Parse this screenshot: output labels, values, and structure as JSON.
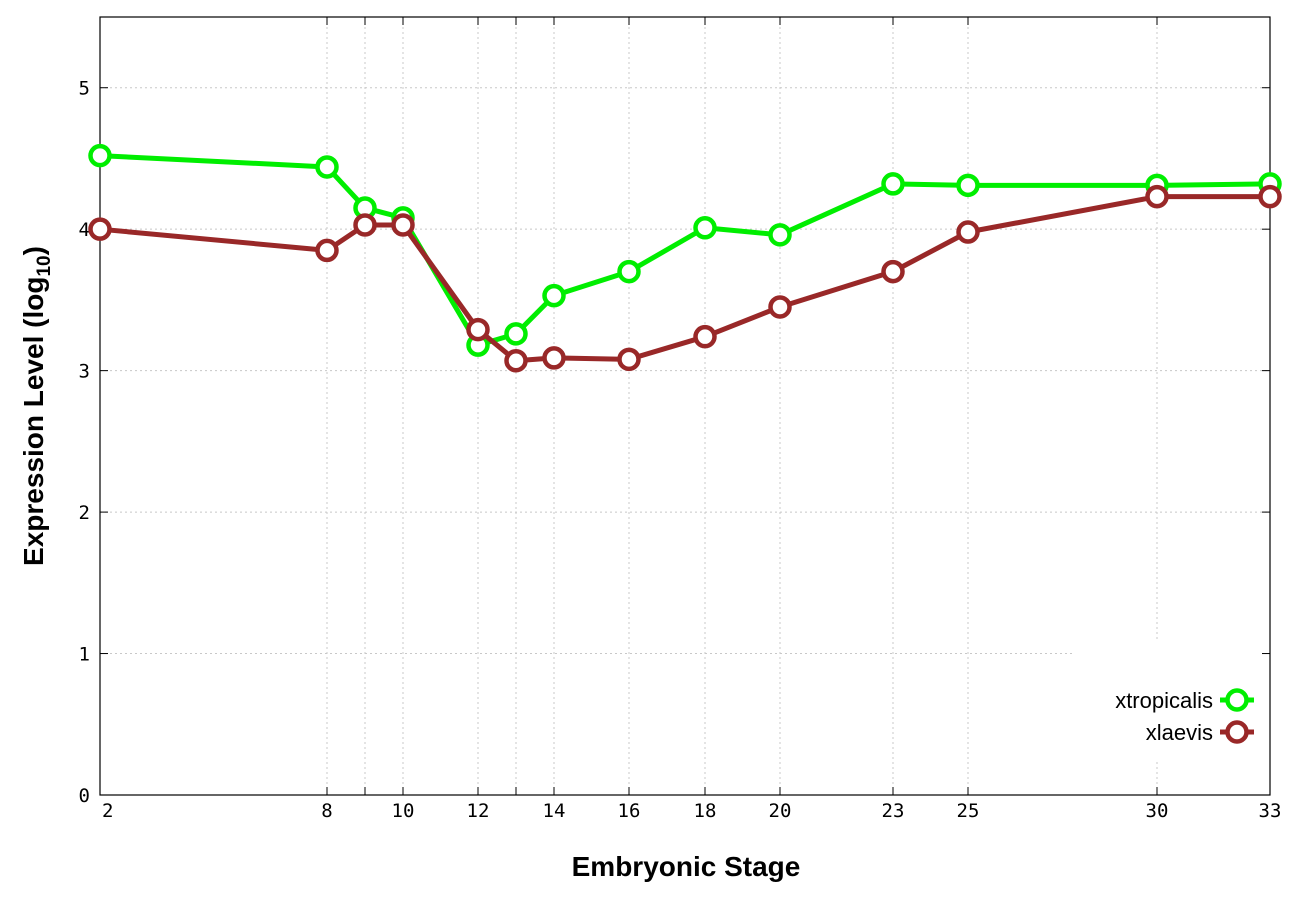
{
  "chart_data": {
    "type": "line",
    "xlabel": "Embryonic Stage",
    "ylabel_main": "Expression Level (log",
    "ylabel_sub": "10",
    "ylabel_close": ")",
    "x_ticks": [
      2,
      8,
      9,
      10,
      12,
      13,
      14,
      16,
      18,
      20,
      23,
      25,
      30,
      33
    ],
    "x_tick_labels": [
      "2",
      "8",
      "10",
      "12",
      "14",
      "16",
      "18",
      "20",
      "23",
      "25",
      "30",
      "33"
    ],
    "x_tick_label_stages": [
      2,
      8,
      10,
      12,
      14,
      16,
      18,
      20,
      23,
      25,
      30,
      33
    ],
    "y_ticks": [
      0,
      1,
      2,
      3,
      4,
      5
    ],
    "y_tick_labels": [
      "0",
      "1",
      "2",
      "3",
      "4",
      "5"
    ],
    "ylim": [
      0,
      5.5
    ],
    "grid": true,
    "legend_placement": "bottom-right",
    "series": [
      {
        "name": "xtropicalis",
        "color": "#00ee00",
        "values": [
          4.52,
          4.44,
          4.15,
          4.08,
          3.18,
          3.26,
          3.53,
          3.7,
          4.01,
          3.96,
          4.32,
          4.31,
          4.31,
          4.32
        ]
      },
      {
        "name": "xlaevis",
        "color": "#992828",
        "values": [
          4.0,
          3.85,
          4.03,
          4.03,
          3.29,
          3.07,
          3.09,
          3.08,
          3.24,
          3.45,
          3.7,
          3.98,
          4.23,
          4.23
        ]
      }
    ]
  }
}
